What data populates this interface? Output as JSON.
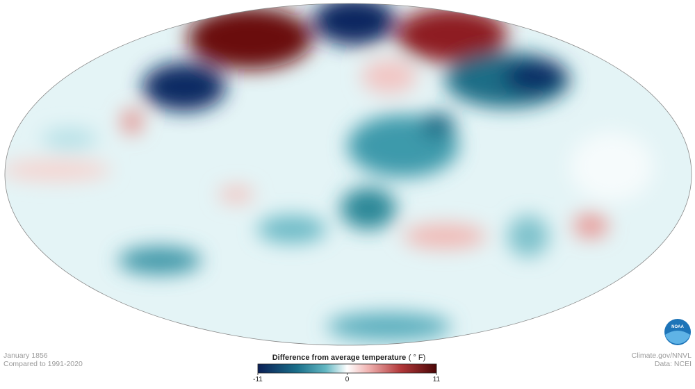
{
  "header": {
    "date": "January 1856",
    "baseline": "Compared to 1991-2020"
  },
  "credits": {
    "source": "Climate.gov/NNVL",
    "data": "Data: NCEI"
  },
  "logo": {
    "label": "NOAA"
  },
  "legend": {
    "title": "Difference from average temperature",
    "unit": "( ° F)",
    "range": [
      -11,
      11
    ],
    "ticks": [
      -11,
      0,
      11
    ]
  }
}
